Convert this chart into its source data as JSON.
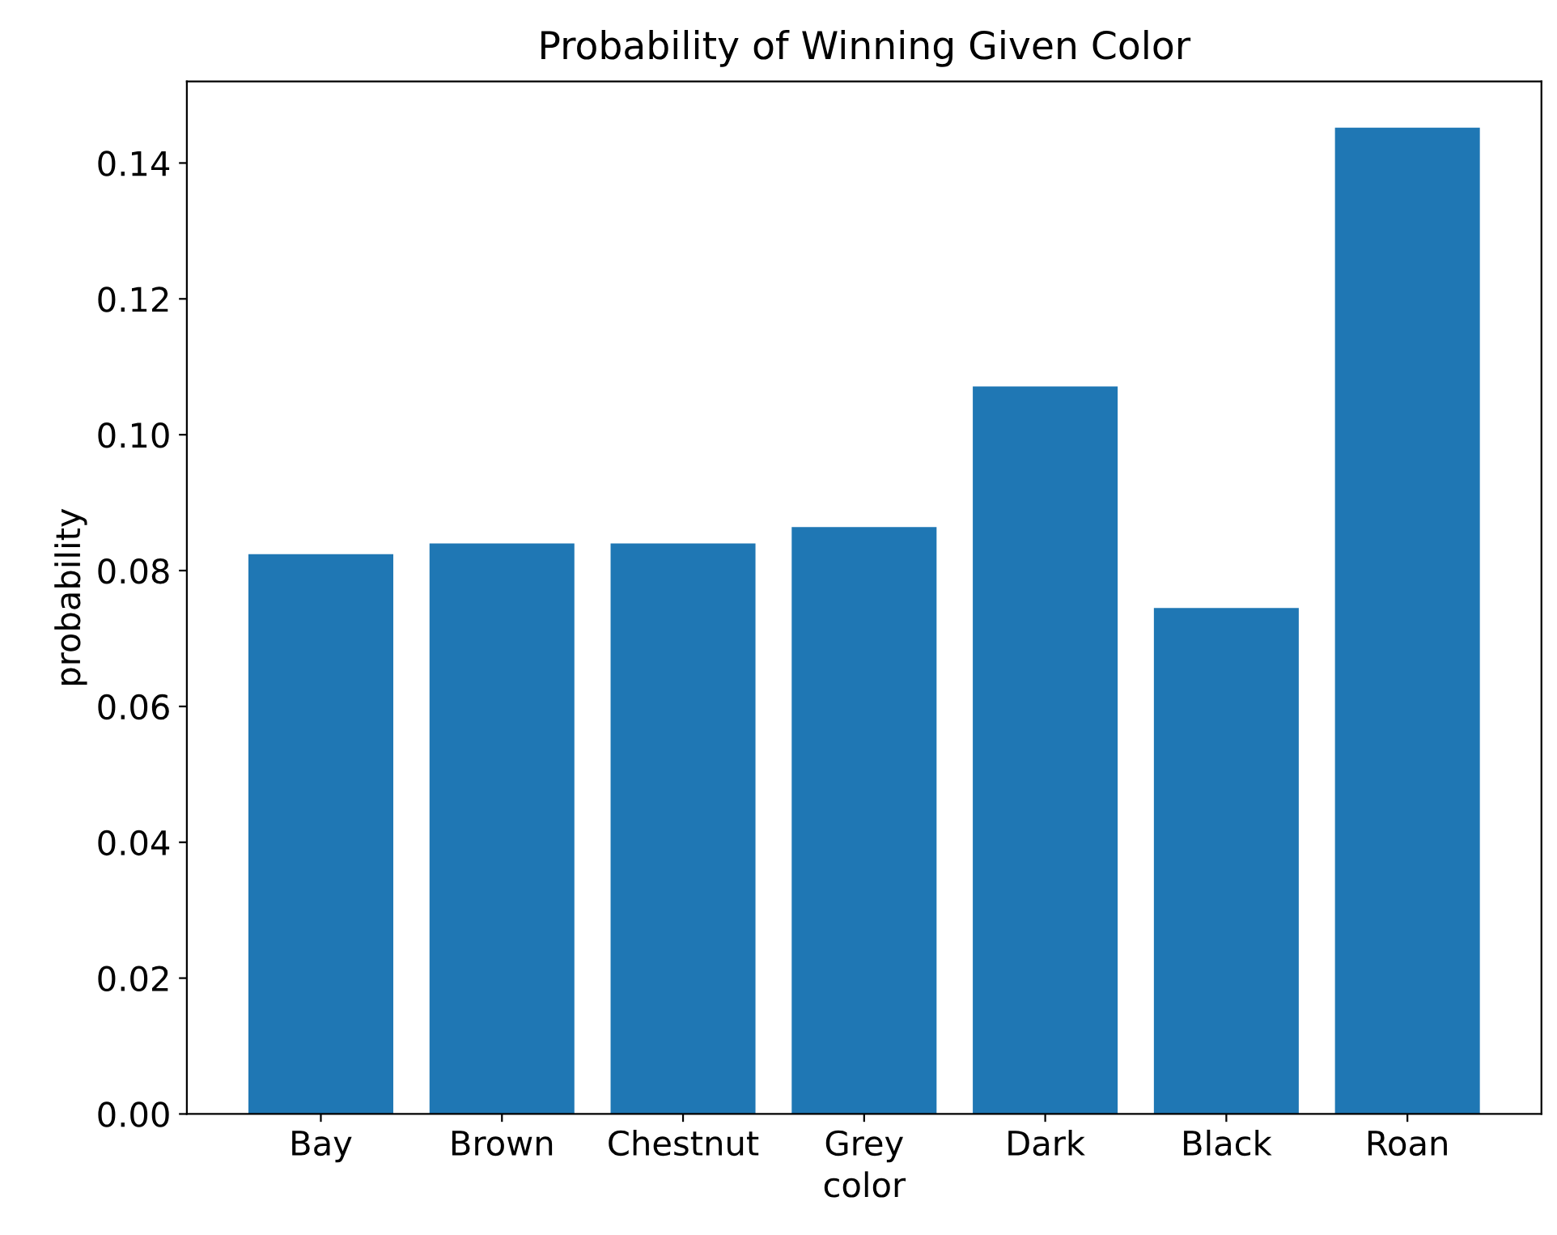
{
  "chart_data": {
    "type": "bar",
    "title": "Probability of Winning Given Color",
    "xlabel": "color",
    "ylabel": "probability",
    "categories": [
      "Bay",
      "Brown",
      "Chestnut",
      "Grey",
      "Dark",
      "Black",
      "Roan"
    ],
    "values": [
      0.0824,
      0.084,
      0.084,
      0.0864,
      0.1071,
      0.0745,
      0.1452
    ],
    "color": "#1f77b4",
    "ylim": [
      0,
      0.152
    ],
    "yticks": [
      {
        "value": 0,
        "label": "0.00"
      },
      {
        "value": 0.02,
        "label": "0.02"
      },
      {
        "value": 0.04,
        "label": "0.04"
      },
      {
        "value": 0.06,
        "label": "0.06"
      },
      {
        "value": 0.08,
        "label": "0.08"
      },
      {
        "value": 0.1,
        "label": "0.10"
      },
      {
        "value": 0.12,
        "label": "0.12"
      },
      {
        "value": 0.14,
        "label": "0.14"
      }
    ]
  }
}
